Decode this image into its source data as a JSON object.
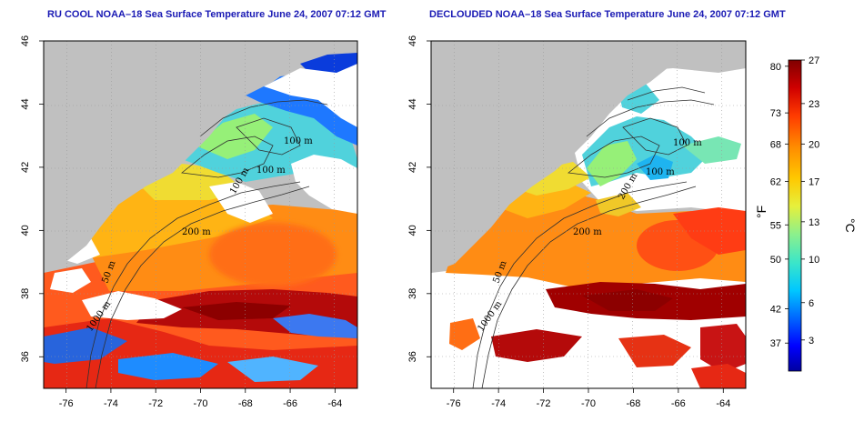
{
  "maps": [
    {
      "title": "RU COOL NOAA–18 Sea Surface Temperature June 24, 2007 07:12 GMT",
      "x_ticks": [
        "-76",
        "-74",
        "-72",
        "-70",
        "-68",
        "-66",
        "-64"
      ],
      "y_ticks": [
        "36",
        "38",
        "40",
        "42",
        "44",
        "46"
      ],
      "lon_range": [
        -77.0,
        -63.0
      ],
      "lat_range": [
        35.0,
        46.0
      ],
      "contour_labels": [
        "100 m",
        "100 m",
        "100 m",
        "200 m",
        "50 m",
        "1000 m"
      ]
    },
    {
      "title": "DECLOUDED NOAA–18 Sea Surface Temperature June 24, 2007 07:12 GMT",
      "x_ticks": [
        "-76",
        "-74",
        "-72",
        "-70",
        "-68",
        "-66",
        "-64"
      ],
      "y_ticks": [
        "36",
        "38",
        "40",
        "42",
        "44",
        "46"
      ],
      "lon_range": [
        -77.0,
        -63.0
      ],
      "lat_range": [
        35.0,
        46.0
      ],
      "contour_labels": [
        "100 m",
        "100 m",
        "200 m",
        "200 m",
        "50 m",
        "1000 m"
      ]
    }
  ],
  "colorbar": {
    "fahrenheit_unit": "°F",
    "celsius_unit": "°C",
    "fahrenheit_ticks": [
      "80",
      "73",
      "68",
      "62",
      "55",
      "50",
      "42",
      "37"
    ],
    "celsius_ticks": [
      "27",
      "23",
      "20",
      "17",
      "13",
      "10",
      "6",
      "3"
    ],
    "colors": [
      "#0000a0",
      "#0000ff",
      "#0066ff",
      "#00c8ff",
      "#3ce6c8",
      "#8cf08c",
      "#e6f03c",
      "#ffc800",
      "#ff8c00",
      "#ff3c00",
      "#d00000",
      "#800000"
    ]
  },
  "legend": {
    "land_color": "#c0c0c0",
    "cloud_color": "#ffffff"
  }
}
